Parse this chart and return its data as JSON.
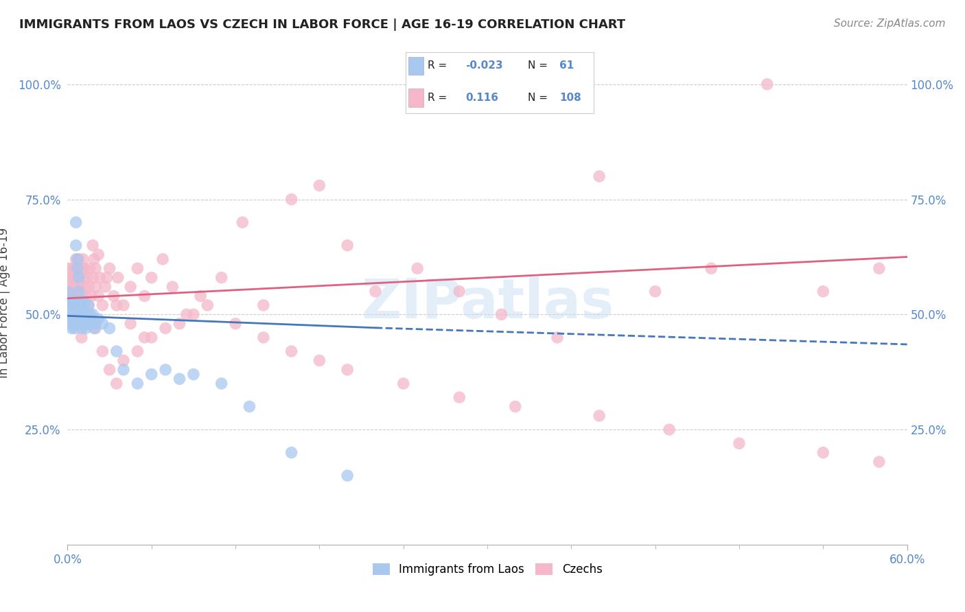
{
  "title": "IMMIGRANTS FROM LAOS VS CZECH IN LABOR FORCE | AGE 16-19 CORRELATION CHART",
  "source": "Source: ZipAtlas.com",
  "ylabel": "In Labor Force | Age 16-19",
  "xlim": [
    0.0,
    0.6
  ],
  "ylim": [
    0.0,
    1.05
  ],
  "laos_R": -0.023,
  "laos_N": 61,
  "czech_R": 0.116,
  "czech_N": 108,
  "laos_color": "#a8c8f0",
  "czech_color": "#f4b8ca",
  "laos_line_color": "#4477bb",
  "czech_line_color": "#e06080",
  "tick_color": "#5588cc",
  "background_color": "#ffffff",
  "grid_color": "#cccccc",
  "watermark": "ZIPatlas",
  "laos_scatter_x": [
    0.0,
    0.0,
    0.0,
    0.0,
    0.001,
    0.001,
    0.002,
    0.002,
    0.002,
    0.003,
    0.003,
    0.003,
    0.004,
    0.004,
    0.004,
    0.005,
    0.005,
    0.005,
    0.005,
    0.005,
    0.006,
    0.006,
    0.006,
    0.007,
    0.007,
    0.007,
    0.008,
    0.008,
    0.009,
    0.009,
    0.01,
    0.01,
    0.01,
    0.011,
    0.011,
    0.012,
    0.012,
    0.013,
    0.013,
    0.014,
    0.015,
    0.015,
    0.016,
    0.017,
    0.018,
    0.019,
    0.02,
    0.022,
    0.025,
    0.03,
    0.035,
    0.04,
    0.05,
    0.06,
    0.07,
    0.08,
    0.09,
    0.11,
    0.13,
    0.16,
    0.2
  ],
  "laos_scatter_y": [
    0.5,
    0.52,
    0.48,
    0.55,
    0.5,
    0.52,
    0.48,
    0.53,
    0.5,
    0.47,
    0.51,
    0.49,
    0.52,
    0.5,
    0.48,
    0.51,
    0.49,
    0.53,
    0.47,
    0.5,
    0.65,
    0.7,
    0.48,
    0.6,
    0.62,
    0.52,
    0.55,
    0.58,
    0.5,
    0.52,
    0.47,
    0.49,
    0.51,
    0.53,
    0.48,
    0.5,
    0.52,
    0.47,
    0.49,
    0.5,
    0.52,
    0.48,
    0.5,
    0.48,
    0.5,
    0.47,
    0.48,
    0.49,
    0.48,
    0.47,
    0.42,
    0.38,
    0.35,
    0.37,
    0.38,
    0.36,
    0.37,
    0.35,
    0.3,
    0.2,
    0.15
  ],
  "czech_scatter_x": [
    0.0,
    0.0,
    0.0,
    0.0,
    0.001,
    0.001,
    0.002,
    0.002,
    0.003,
    0.003,
    0.003,
    0.004,
    0.004,
    0.005,
    0.005,
    0.005,
    0.006,
    0.006,
    0.007,
    0.007,
    0.008,
    0.008,
    0.009,
    0.009,
    0.01,
    0.01,
    0.011,
    0.011,
    0.012,
    0.012,
    0.013,
    0.014,
    0.015,
    0.015,
    0.016,
    0.017,
    0.018,
    0.019,
    0.02,
    0.02,
    0.022,
    0.023,
    0.025,
    0.027,
    0.03,
    0.033,
    0.036,
    0.04,
    0.045,
    0.05,
    0.055,
    0.06,
    0.068,
    0.075,
    0.085,
    0.095,
    0.11,
    0.125,
    0.14,
    0.16,
    0.18,
    0.2,
    0.22,
    0.25,
    0.28,
    0.31,
    0.35,
    0.38,
    0.42,
    0.46,
    0.5,
    0.54,
    0.58,
    0.005,
    0.01,
    0.015,
    0.02,
    0.025,
    0.03,
    0.035,
    0.04,
    0.05,
    0.06,
    0.07,
    0.08,
    0.09,
    0.1,
    0.12,
    0.14,
    0.16,
    0.18,
    0.2,
    0.24,
    0.28,
    0.32,
    0.38,
    0.43,
    0.48,
    0.54,
    0.58,
    0.008,
    0.012,
    0.018,
    0.022,
    0.028,
    0.035,
    0.045,
    0.055
  ],
  "czech_scatter_y": [
    0.55,
    0.58,
    0.52,
    0.6,
    0.56,
    0.54,
    0.58,
    0.52,
    0.56,
    0.6,
    0.54,
    0.58,
    0.52,
    0.56,
    0.6,
    0.54,
    0.58,
    0.62,
    0.56,
    0.6,
    0.54,
    0.58,
    0.52,
    0.56,
    0.6,
    0.54,
    0.58,
    0.62,
    0.56,
    0.6,
    0.54,
    0.58,
    0.52,
    0.56,
    0.6,
    0.54,
    0.58,
    0.62,
    0.56,
    0.6,
    0.54,
    0.58,
    0.52,
    0.56,
    0.6,
    0.54,
    0.58,
    0.52,
    0.56,
    0.6,
    0.54,
    0.58,
    0.62,
    0.56,
    0.5,
    0.54,
    0.58,
    0.7,
    0.52,
    0.75,
    0.78,
    0.65,
    0.55,
    0.6,
    0.55,
    0.5,
    0.45,
    0.8,
    0.55,
    0.6,
    1.0,
    0.55,
    0.6,
    0.48,
    0.45,
    0.5,
    0.47,
    0.42,
    0.38,
    0.35,
    0.4,
    0.42,
    0.45,
    0.47,
    0.48,
    0.5,
    0.52,
    0.48,
    0.45,
    0.42,
    0.4,
    0.38,
    0.35,
    0.32,
    0.3,
    0.28,
    0.25,
    0.22,
    0.2,
    0.18,
    0.62,
    0.6,
    0.65,
    0.63,
    0.58,
    0.52,
    0.48,
    0.45
  ],
  "laos_trend_x0": 0.0,
  "laos_trend_x1": 0.22,
  "laos_trend_y0": 0.497,
  "laos_trend_y1": 0.471,
  "laos_trend_x1_dashed": 0.6,
  "laos_trend_y1_dashed": 0.435,
  "czech_trend_x0": 0.0,
  "czech_trend_x1": 0.6,
  "czech_trend_y0": 0.535,
  "czech_trend_y1": 0.625
}
